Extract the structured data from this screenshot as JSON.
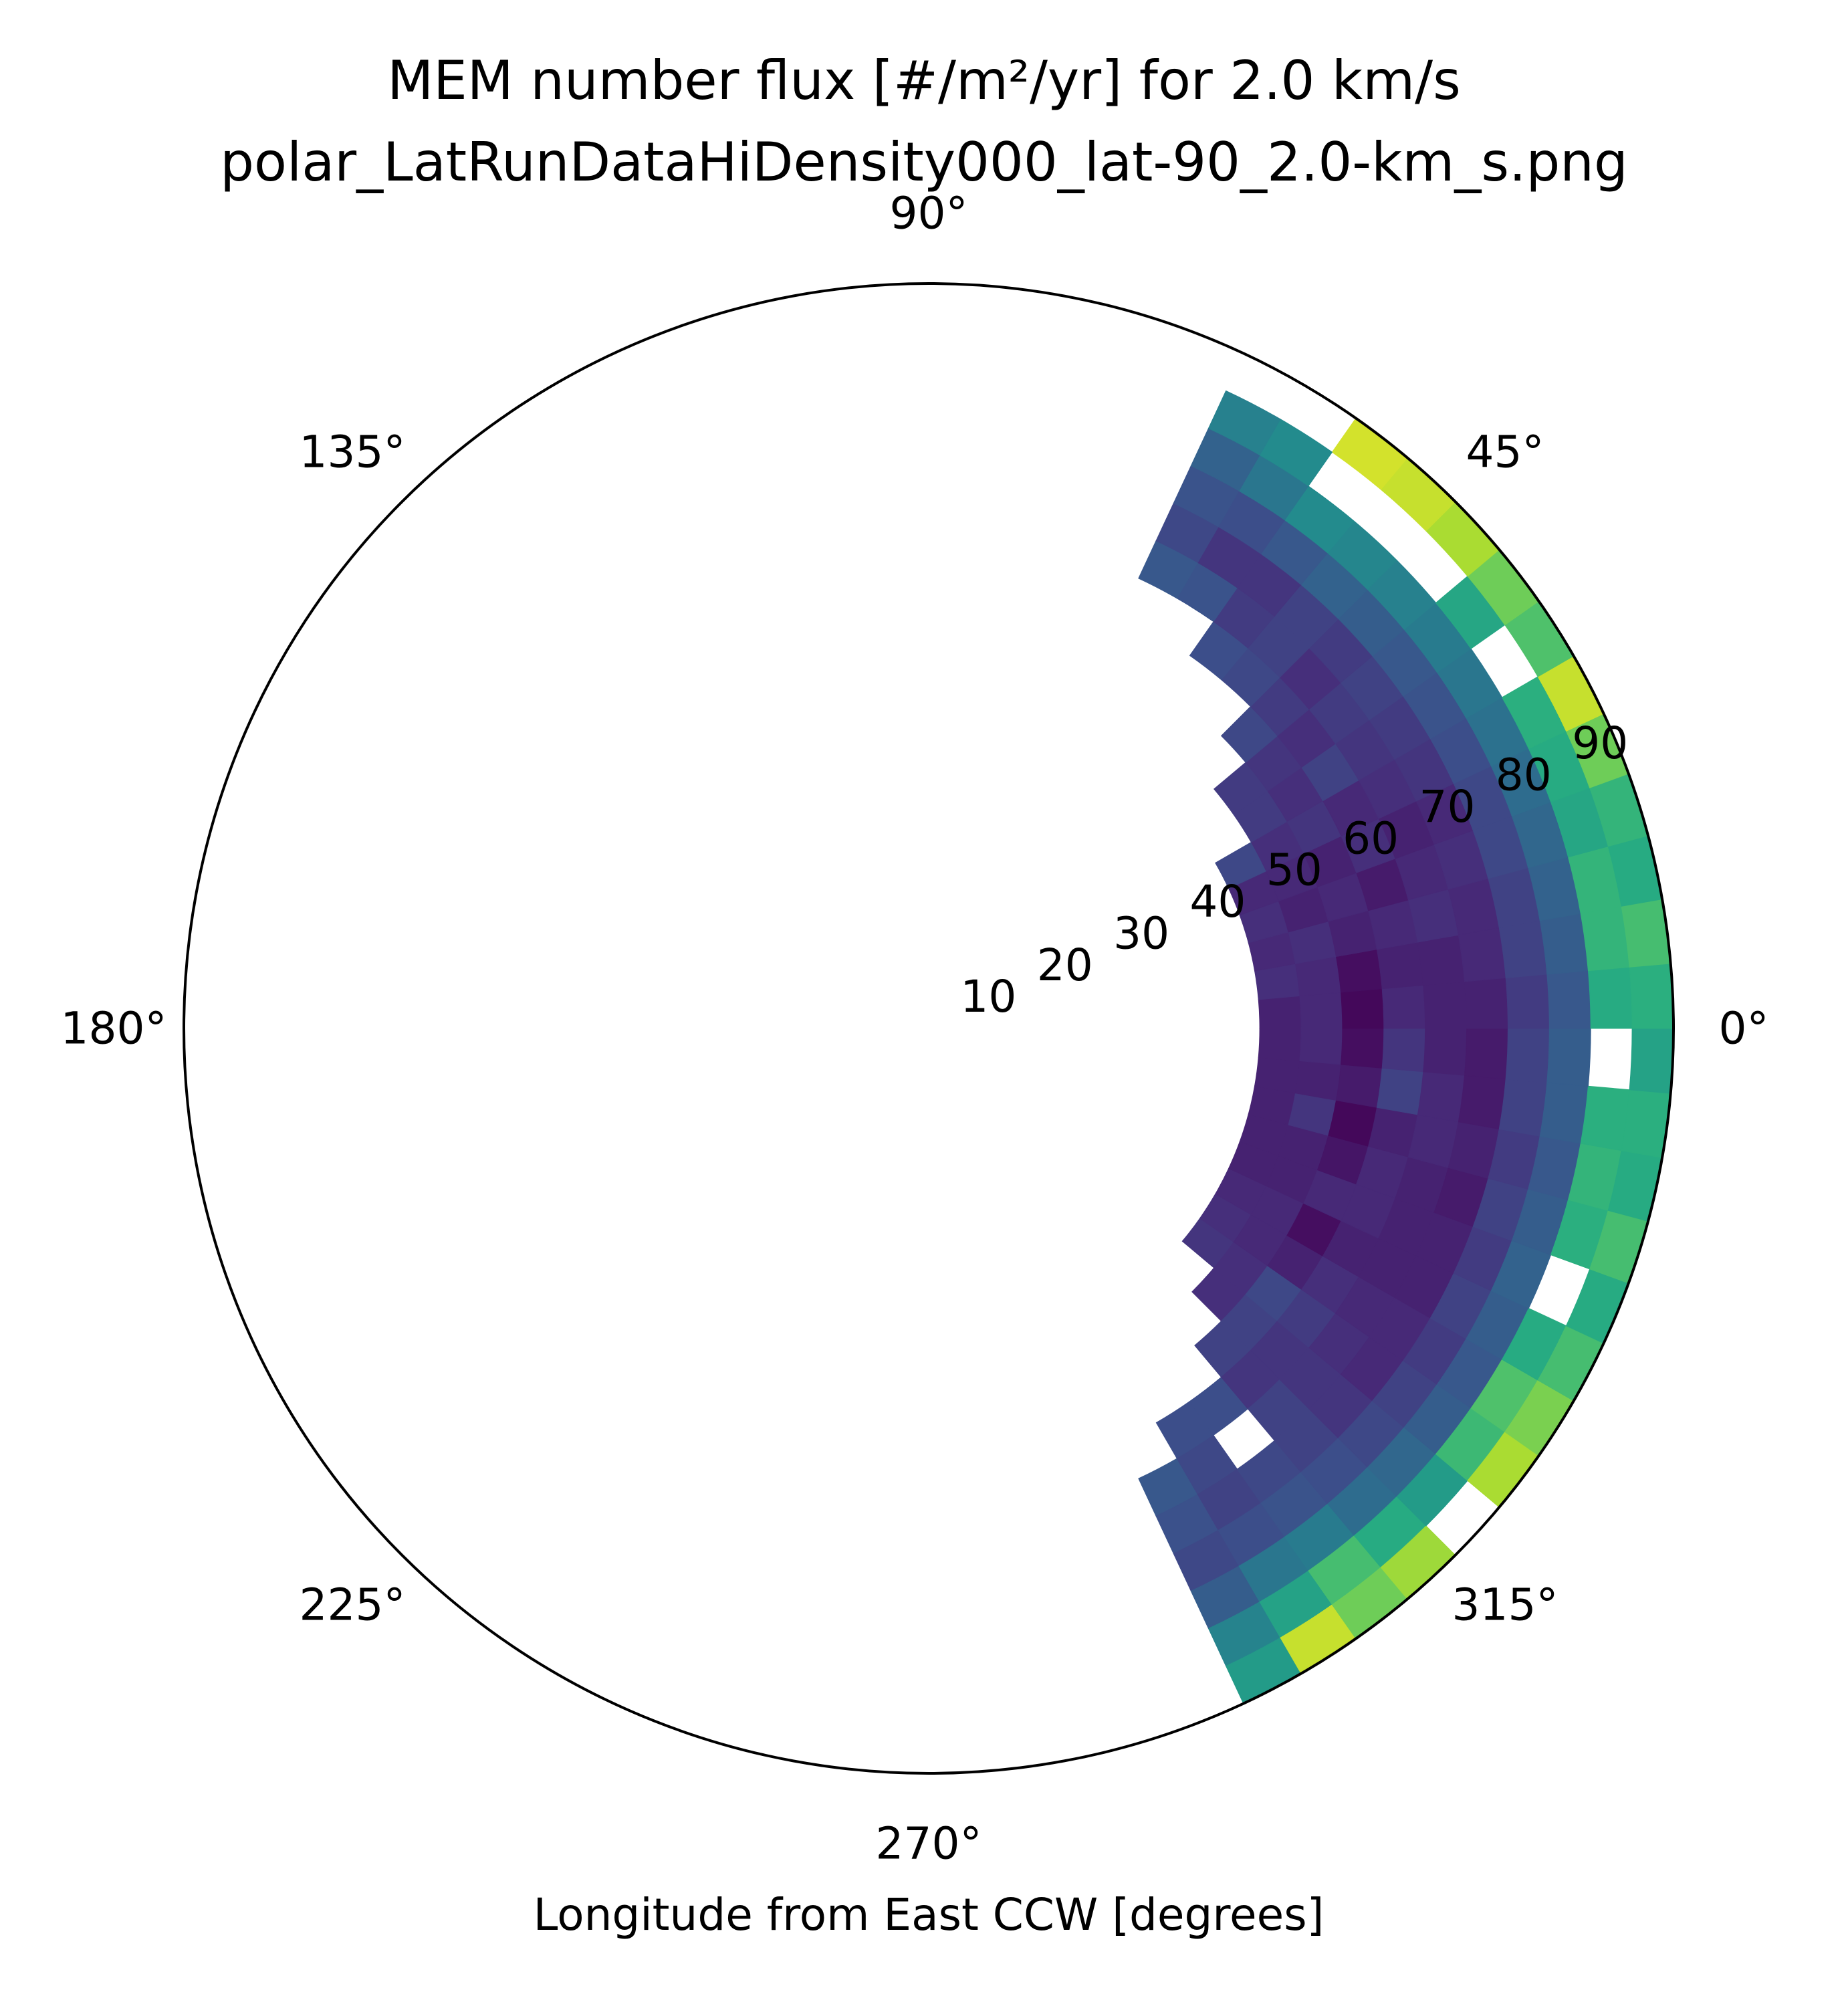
{
  "chart_data": {
    "type": "heatmap",
    "projection": "polar",
    "title": [
      "MEM number flux [#/m²/yr] for 2.0 km/s",
      "polar_LatRunDataHiDensity000_lat-90_2.0-km_s.png"
    ],
    "xlabel": "Longitude from East CCW [degrees]",
    "theta_direction": "counter-clockwise",
    "theta_zero": "east",
    "theta_ticks": [
      "0°",
      "45°",
      "90°",
      "135°",
      "180°",
      "225°",
      "270°",
      "315°"
    ],
    "theta_tick_values": [
      0,
      45,
      90,
      135,
      180,
      225,
      270,
      315
    ],
    "r_ticks": [
      "10",
      "20",
      "30",
      "40",
      "50",
      "60",
      "70",
      "80",
      "90"
    ],
    "r_tick_values": [
      10,
      20,
      30,
      40,
      50,
      60,
      70,
      80,
      90
    ],
    "r_tick_label_angle": 22.5,
    "rlim": [
      0,
      90
    ],
    "theta_bin_width": 5,
    "r_bins": [
      [
        40,
        45
      ],
      [
        45,
        50
      ],
      [
        50,
        55
      ],
      [
        55,
        60
      ],
      [
        60,
        65
      ],
      [
        65,
        70
      ],
      [
        70,
        75
      ],
      [
        75,
        80
      ],
      [
        80,
        85
      ],
      [
        85,
        90
      ]
    ],
    "theta_bins_start": [
      -65,
      -60,
      -55,
      -50,
      -45,
      -40,
      -35,
      -30,
      -25,
      -20,
      -15,
      -10,
      -5,
      0,
      5,
      10,
      15,
      20,
      25,
      30,
      35,
      40,
      45,
      50,
      55,
      60
    ],
    "colormap": "viridis",
    "color_scale": "normalized 0-1 (no colorbar shown)",
    "grid": false,
    "values": [
      [
        null,
        null,
        null,
        null,
        0.28,
        0.25,
        0.22,
        0.3,
        0.45,
        0.55
      ],
      [
        null,
        null,
        null,
        0.24,
        0.22,
        0.2,
        0.24,
        0.4,
        0.58,
        0.92
      ],
      [
        null,
        null,
        null,
        0.24,
        null,
        0.22,
        0.26,
        0.42,
        0.7,
        0.78
      ],
      [
        null,
        null,
        0.2,
        0.16,
        0.2,
        0.2,
        0.24,
        0.36,
        0.62,
        0.86
      ],
      [
        null,
        0.14,
        0.2,
        0.16,
        0.16,
        0.16,
        0.22,
        0.34,
        0.55,
        null
      ],
      [
        0.16,
        0.14,
        0.22,
        0.18,
        0.14,
        0.12,
        0.2,
        0.3,
        0.68,
        0.88
      ],
      [
        0.14,
        0.12,
        0.1,
        0.14,
        0.12,
        0.12,
        0.18,
        0.28,
        0.72,
        0.8
      ],
      [
        0.12,
        0.12,
        0.04,
        0.1,
        0.1,
        0.1,
        0.2,
        0.3,
        0.62,
        0.7
      ],
      [
        0.1,
        0.1,
        0.12,
        0.12,
        0.1,
        0.1,
        0.18,
        0.32,
        null,
        0.62
      ],
      [
        0.1,
        0.1,
        0.06,
        0.12,
        0.1,
        0.08,
        0.2,
        0.3,
        0.64,
        0.7
      ],
      [
        0.1,
        0.16,
        0.02,
        0.1,
        0.12,
        0.1,
        0.18,
        0.28,
        0.66,
        0.62
      ],
      [
        0.1,
        0.1,
        0.08,
        0.2,
        0.12,
        0.08,
        0.2,
        0.3,
        0.64,
        0.64
      ],
      [
        0.1,
        0.12,
        0.04,
        0.16,
        0.1,
        0.08,
        0.2,
        0.3,
        null,
        0.58
      ],
      [
        0.1,
        0.12,
        0.02,
        0.12,
        0.1,
        0.1,
        0.18,
        0.28,
        0.62,
        0.64
      ],
      [
        0.14,
        0.12,
        0.04,
        0.1,
        0.1,
        0.12,
        0.2,
        0.3,
        0.66,
        0.7
      ],
      [
        0.12,
        0.14,
        0.1,
        0.12,
        0.14,
        0.12,
        0.2,
        0.32,
        0.66,
        0.62
      ],
      [
        0.14,
        0.1,
        0.12,
        0.08,
        0.12,
        0.14,
        0.22,
        0.34,
        0.6,
        0.66
      ],
      [
        0.12,
        0.12,
        0.1,
        0.14,
        0.1,
        0.12,
        0.22,
        0.36,
        0.62,
        0.78
      ],
      [
        0.22,
        0.14,
        0.16,
        0.12,
        0.14,
        0.16,
        0.24,
        0.38,
        0.64,
        0.92
      ],
      [
        null,
        0.18,
        0.14,
        0.2,
        0.16,
        0.18,
        0.26,
        0.4,
        null,
        0.72
      ],
      [
        null,
        0.18,
        0.16,
        0.14,
        0.18,
        0.2,
        0.28,
        0.42,
        0.6,
        0.78
      ],
      [
        null,
        null,
        0.22,
        0.18,
        0.14,
        0.18,
        0.3,
        0.44,
        null,
        0.88
      ],
      [
        null,
        null,
        null,
        0.22,
        0.2,
        0.2,
        0.32,
        0.46,
        null,
        0.92
      ],
      [
        null,
        null,
        null,
        0.24,
        0.18,
        0.16,
        0.28,
        0.48,
        null,
        0.94
      ],
      [
        null,
        null,
        null,
        null,
        0.26,
        0.16,
        0.24,
        0.4,
        0.48,
        null
      ],
      [
        null,
        null,
        null,
        null,
        0.28,
        0.22,
        0.26,
        0.32,
        0.44,
        null
      ]
    ]
  }
}
